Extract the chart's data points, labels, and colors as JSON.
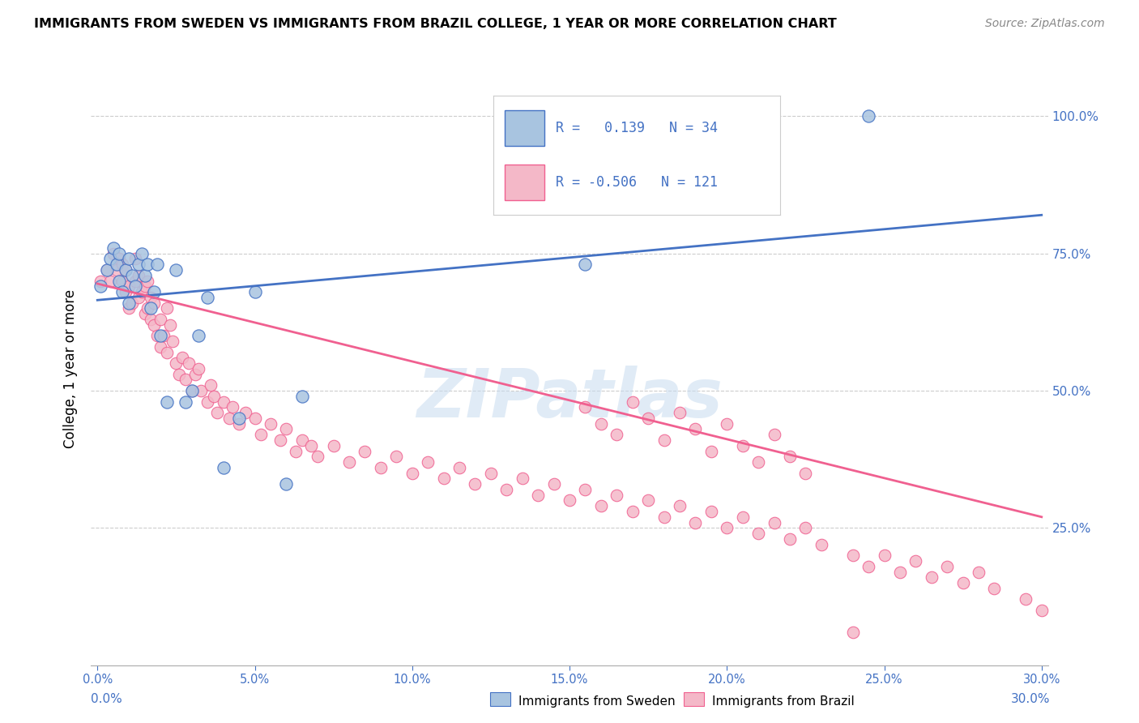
{
  "title": "IMMIGRANTS FROM SWEDEN VS IMMIGRANTS FROM BRAZIL COLLEGE, 1 YEAR OR MORE CORRELATION CHART",
  "source": "Source: ZipAtlas.com",
  "ylabel": "College, 1 year or more",
  "sweden_color": "#a8c4e0",
  "brazil_color": "#f4b8c8",
  "sweden_edge_color": "#4472c4",
  "brazil_edge_color": "#f06090",
  "sweden_line_color": "#4472c4",
  "brazil_line_color": "#f06090",
  "watermark": "ZIPatlas",
  "xlim": [
    -0.002,
    0.302
  ],
  "ylim": [
    0.0,
    1.08
  ],
  "yticks": [
    0.25,
    0.5,
    0.75,
    1.0
  ],
  "xticks": [
    0.0,
    0.05,
    0.1,
    0.15,
    0.2,
    0.25,
    0.3
  ],
  "grid_color": "#cccccc",
  "sweden_line_x": [
    0.0,
    0.3
  ],
  "sweden_line_y": [
    0.665,
    0.82
  ],
  "brazil_line_x": [
    0.0,
    0.3
  ],
  "brazil_line_y": [
    0.695,
    0.27
  ],
  "sweden_x": [
    0.001,
    0.003,
    0.004,
    0.005,
    0.006,
    0.007,
    0.007,
    0.008,
    0.009,
    0.01,
    0.01,
    0.011,
    0.012,
    0.013,
    0.014,
    0.015,
    0.016,
    0.017,
    0.018,
    0.019,
    0.02,
    0.022,
    0.025,
    0.028,
    0.03,
    0.032,
    0.035,
    0.04,
    0.045,
    0.05,
    0.06,
    0.065,
    0.155,
    0.245
  ],
  "sweden_y": [
    0.69,
    0.72,
    0.74,
    0.76,
    0.73,
    0.7,
    0.75,
    0.68,
    0.72,
    0.66,
    0.74,
    0.71,
    0.69,
    0.73,
    0.75,
    0.71,
    0.73,
    0.65,
    0.68,
    0.73,
    0.6,
    0.48,
    0.72,
    0.48,
    0.5,
    0.6,
    0.67,
    0.36,
    0.45,
    0.68,
    0.33,
    0.49,
    0.73,
    1.0
  ],
  "brazil_x": [
    0.001,
    0.003,
    0.004,
    0.005,
    0.006,
    0.007,
    0.008,
    0.008,
    0.009,
    0.009,
    0.01,
    0.01,
    0.011,
    0.012,
    0.012,
    0.013,
    0.013,
    0.014,
    0.015,
    0.015,
    0.016,
    0.016,
    0.017,
    0.017,
    0.018,
    0.018,
    0.019,
    0.02,
    0.02,
    0.021,
    0.022,
    0.022,
    0.023,
    0.024,
    0.025,
    0.026,
    0.027,
    0.028,
    0.029,
    0.03,
    0.031,
    0.032,
    0.033,
    0.035,
    0.036,
    0.037,
    0.038,
    0.04,
    0.042,
    0.043,
    0.045,
    0.047,
    0.05,
    0.052,
    0.055,
    0.058,
    0.06,
    0.063,
    0.065,
    0.068,
    0.07,
    0.075,
    0.08,
    0.085,
    0.09,
    0.095,
    0.1,
    0.105,
    0.11,
    0.115,
    0.12,
    0.125,
    0.13,
    0.135,
    0.14,
    0.145,
    0.15,
    0.155,
    0.16,
    0.165,
    0.17,
    0.175,
    0.18,
    0.185,
    0.19,
    0.195,
    0.2,
    0.205,
    0.21,
    0.215,
    0.22,
    0.225,
    0.23,
    0.24,
    0.245,
    0.25,
    0.255,
    0.26,
    0.265,
    0.27,
    0.275,
    0.28,
    0.285,
    0.295,
    0.3,
    0.155,
    0.16,
    0.165,
    0.17,
    0.175,
    0.18,
    0.185,
    0.19,
    0.195,
    0.2,
    0.205,
    0.21,
    0.215,
    0.22,
    0.225,
    0.24
  ],
  "brazil_y": [
    0.7,
    0.72,
    0.7,
    0.75,
    0.72,
    0.74,
    0.7,
    0.73,
    0.68,
    0.72,
    0.65,
    0.69,
    0.66,
    0.7,
    0.74,
    0.67,
    0.71,
    0.68,
    0.64,
    0.69,
    0.65,
    0.7,
    0.63,
    0.67,
    0.62,
    0.66,
    0.6,
    0.63,
    0.58,
    0.6,
    0.65,
    0.57,
    0.62,
    0.59,
    0.55,
    0.53,
    0.56,
    0.52,
    0.55,
    0.5,
    0.53,
    0.54,
    0.5,
    0.48,
    0.51,
    0.49,
    0.46,
    0.48,
    0.45,
    0.47,
    0.44,
    0.46,
    0.45,
    0.42,
    0.44,
    0.41,
    0.43,
    0.39,
    0.41,
    0.4,
    0.38,
    0.4,
    0.37,
    0.39,
    0.36,
    0.38,
    0.35,
    0.37,
    0.34,
    0.36,
    0.33,
    0.35,
    0.32,
    0.34,
    0.31,
    0.33,
    0.3,
    0.32,
    0.29,
    0.31,
    0.28,
    0.3,
    0.27,
    0.29,
    0.26,
    0.28,
    0.25,
    0.27,
    0.24,
    0.26,
    0.23,
    0.25,
    0.22,
    0.2,
    0.18,
    0.2,
    0.17,
    0.19,
    0.16,
    0.18,
    0.15,
    0.17,
    0.14,
    0.12,
    0.1,
    0.47,
    0.44,
    0.42,
    0.48,
    0.45,
    0.41,
    0.46,
    0.43,
    0.39,
    0.44,
    0.4,
    0.37,
    0.42,
    0.38,
    0.35,
    0.06
  ]
}
